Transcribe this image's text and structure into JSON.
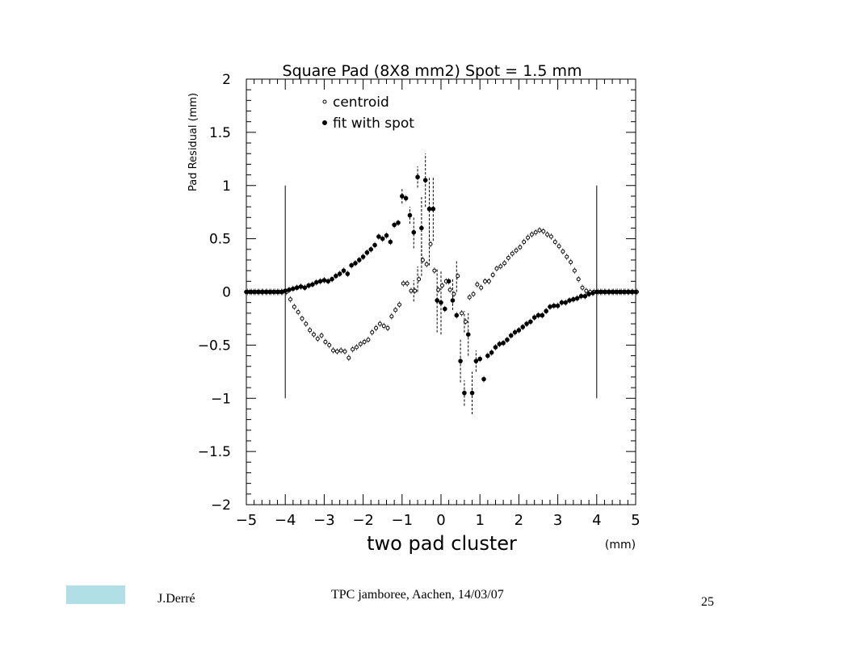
{
  "slide": {
    "author": "J.Derré",
    "event": "TPC jamboree, Aachen, 14/03/07",
    "page_number": "25",
    "accent_box_color": "#b0e0e6"
  },
  "chart_data": {
    "type": "scatter",
    "title": "Square Pad (8X8 mm2) Spot = 1.5 mm",
    "xlabel": "two pad cluster",
    "xunit": "(mm)",
    "ylabel": "Pad Residual (mm)",
    "xlim": [
      -5,
      5
    ],
    "ylim": [
      -2,
      2
    ],
    "x_ticks": [
      -5,
      -4,
      -3,
      -2,
      -1,
      0,
      1,
      2,
      3,
      4,
      5
    ],
    "x_tick_labels": [
      "−5",
      "−4",
      "−3",
      "−2",
      "−1",
      "0",
      "1",
      "2",
      "3",
      "4",
      "5"
    ],
    "y_ticks": [
      -2,
      -1.5,
      -1,
      -0.5,
      0,
      0.5,
      1,
      1.5,
      2
    ],
    "y_tick_labels": [
      "−2",
      "−1.5",
      "−1",
      "−0.5",
      "0",
      "0.5",
      "1",
      "1.5",
      "2"
    ],
    "grid": false,
    "legend_position": "top-left",
    "vertical_markers": [
      {
        "x": -4,
        "y_range": [
          -1,
          1
        ]
      },
      {
        "x": 4,
        "y_range": [
          -1,
          1
        ]
      }
    ],
    "series": [
      {
        "name": "centroid",
        "marker": "open-circle",
        "points": [
          [
            -5.0,
            0
          ],
          [
            -4.9,
            0
          ],
          [
            -4.8,
            0
          ],
          [
            -4.7,
            0
          ],
          [
            -4.6,
            0
          ],
          [
            -4.5,
            0
          ],
          [
            -4.4,
            0
          ],
          [
            -4.3,
            0
          ],
          [
            -4.2,
            0
          ],
          [
            -4.1,
            0
          ],
          [
            -4.0,
            0
          ],
          [
            -3.9,
            -0.07
          ],
          [
            -3.8,
            -0.14
          ],
          [
            -3.7,
            -0.19
          ],
          [
            -3.6,
            -0.25
          ],
          [
            -3.5,
            -0.3
          ],
          [
            -3.4,
            -0.36
          ],
          [
            -3.3,
            -0.4
          ],
          [
            -3.2,
            -0.44
          ],
          [
            -3.1,
            -0.41
          ],
          [
            -3.0,
            -0.47
          ],
          [
            -2.9,
            -0.5
          ],
          [
            -2.8,
            -0.55
          ],
          [
            -2.7,
            -0.56
          ],
          [
            -2.6,
            -0.55
          ],
          [
            -2.5,
            -0.56
          ],
          [
            -2.4,
            -0.62
          ],
          [
            -2.3,
            -0.54
          ],
          [
            -2.2,
            -0.52
          ],
          [
            -2.1,
            -0.49
          ],
          [
            -2.0,
            -0.47
          ],
          [
            -1.9,
            -0.45
          ],
          [
            -1.8,
            -0.38
          ],
          [
            -1.7,
            -0.34
          ],
          [
            -1.6,
            -0.3
          ],
          [
            -1.5,
            -0.32
          ],
          [
            -1.4,
            -0.34
          ],
          [
            -1.3,
            -0.23
          ],
          [
            -1.2,
            -0.17
          ],
          [
            -1.1,
            -0.12
          ],
          [
            -1.0,
            0.08
          ],
          [
            -0.9,
            0.08
          ],
          [
            -0.8,
            0.01
          ],
          [
            -0.7,
            0.01
          ],
          [
            -0.6,
            0.12
          ],
          [
            -0.5,
            0.3
          ],
          [
            -0.4,
            0.26
          ],
          [
            -0.3,
            0.45
          ],
          [
            -0.2,
            0.2
          ],
          [
            -0.1,
            0.02
          ],
          [
            0.0,
            0.06
          ],
          [
            0.1,
            0.1
          ],
          [
            0.2,
            0.02
          ],
          [
            0.3,
            -0.02
          ],
          [
            0.4,
            0.15
          ],
          [
            0.5,
            -0.2
          ],
          [
            0.6,
            -0.28
          ],
          [
            0.7,
            -0.05
          ],
          [
            0.8,
            -0.02
          ],
          [
            0.9,
            0.07
          ],
          [
            1.0,
            0.04
          ],
          [
            1.1,
            0.1
          ],
          [
            1.2,
            0.1
          ],
          [
            1.3,
            0.16
          ],
          [
            1.4,
            0.22
          ],
          [
            1.5,
            0.24
          ],
          [
            1.6,
            0.27
          ],
          [
            1.7,
            0.32
          ],
          [
            1.8,
            0.36
          ],
          [
            1.9,
            0.39
          ],
          [
            2.0,
            0.42
          ],
          [
            2.1,
            0.47
          ],
          [
            2.2,
            0.51
          ],
          [
            2.3,
            0.54
          ],
          [
            2.4,
            0.56
          ],
          [
            2.5,
            0.58
          ],
          [
            2.6,
            0.57
          ],
          [
            2.7,
            0.54
          ],
          [
            2.8,
            0.52
          ],
          [
            2.9,
            0.47
          ],
          [
            3.0,
            0.43
          ],
          [
            3.1,
            0.38
          ],
          [
            3.2,
            0.33
          ],
          [
            3.3,
            0.28
          ],
          [
            3.4,
            0.2
          ],
          [
            3.5,
            0.12
          ],
          [
            3.6,
            0.04
          ],
          [
            3.7,
            0.01
          ],
          [
            3.8,
            0
          ],
          [
            3.9,
            0
          ],
          [
            4.0,
            0
          ],
          [
            4.1,
            0
          ],
          [
            4.2,
            0
          ],
          [
            4.3,
            0
          ],
          [
            4.4,
            0
          ],
          [
            4.5,
            0
          ],
          [
            4.6,
            0
          ],
          [
            4.7,
            0
          ],
          [
            4.8,
            0
          ],
          [
            4.9,
            0
          ],
          [
            5.0,
            0
          ]
        ]
      },
      {
        "name": "fit with spot",
        "marker": "filled-circle",
        "points": [
          [
            -5.0,
            0
          ],
          [
            -4.9,
            0
          ],
          [
            -4.8,
            0
          ],
          [
            -4.7,
            0
          ],
          [
            -4.6,
            0
          ],
          [
            -4.5,
            0
          ],
          [
            -4.4,
            0
          ],
          [
            -4.3,
            0
          ],
          [
            -4.2,
            0
          ],
          [
            -4.1,
            0
          ],
          [
            -4.0,
            0.01
          ],
          [
            -3.9,
            0.02
          ],
          [
            -3.8,
            0.03
          ],
          [
            -3.7,
            0.04
          ],
          [
            -3.6,
            0.05
          ],
          [
            -3.5,
            0.04
          ],
          [
            -3.4,
            0.06
          ],
          [
            -3.3,
            0.07
          ],
          [
            -3.2,
            0.09
          ],
          [
            -3.1,
            0.1
          ],
          [
            -3.0,
            0.11
          ],
          [
            -2.9,
            0.1
          ],
          [
            -2.8,
            0.12
          ],
          [
            -2.7,
            0.15
          ],
          [
            -2.6,
            0.17
          ],
          [
            -2.5,
            0.2
          ],
          [
            -2.4,
            0.17
          ],
          [
            -2.3,
            0.25
          ],
          [
            -2.2,
            0.27
          ],
          [
            -2.1,
            0.3
          ],
          [
            -2.0,
            0.33
          ],
          [
            -1.9,
            0.37
          ],
          [
            -1.8,
            0.4
          ],
          [
            -1.7,
            0.44
          ],
          [
            -1.6,
            0.52
          ],
          [
            -1.5,
            0.5
          ],
          [
            -1.4,
            0.53
          ],
          [
            -1.3,
            0.47
          ],
          [
            -1.2,
            0.63
          ],
          [
            -1.1,
            0.65
          ],
          [
            -1.0,
            0.9
          ],
          [
            -0.9,
            0.88
          ],
          [
            -0.8,
            0.72
          ],
          [
            -0.7,
            0.56
          ],
          [
            -0.6,
            1.08
          ],
          [
            -0.5,
            0.6
          ],
          [
            -0.4,
            1.05
          ],
          [
            -0.3,
            0.78
          ],
          [
            -0.2,
            0.78
          ],
          [
            -0.1,
            -0.08
          ],
          [
            0.0,
            -0.1
          ],
          [
            0.1,
            -0.16
          ],
          [
            0.2,
            0.1
          ],
          [
            0.3,
            -0.08
          ],
          [
            0.4,
            -0.22
          ],
          [
            0.5,
            -0.65
          ],
          [
            0.6,
            -0.95
          ],
          [
            0.7,
            -0.4
          ],
          [
            0.8,
            -0.95
          ],
          [
            0.9,
            -0.65
          ],
          [
            1.0,
            -0.63
          ],
          [
            1.1,
            -0.82
          ],
          [
            1.2,
            -0.6
          ],
          [
            1.3,
            -0.57
          ],
          [
            1.4,
            -0.52
          ],
          [
            1.5,
            -0.49
          ],
          [
            1.6,
            -0.48
          ],
          [
            1.7,
            -0.45
          ],
          [
            1.8,
            -0.41
          ],
          [
            1.9,
            -0.38
          ],
          [
            2.0,
            -0.36
          ],
          [
            2.1,
            -0.33
          ],
          [
            2.2,
            -0.3
          ],
          [
            2.3,
            -0.28
          ],
          [
            2.4,
            -0.24
          ],
          [
            2.5,
            -0.22
          ],
          [
            2.6,
            -0.22
          ],
          [
            2.7,
            -0.18
          ],
          [
            2.8,
            -0.14
          ],
          [
            2.9,
            -0.13
          ],
          [
            3.0,
            -0.13
          ],
          [
            3.1,
            -0.1
          ],
          [
            3.2,
            -0.1
          ],
          [
            3.3,
            -0.08
          ],
          [
            3.4,
            -0.07
          ],
          [
            3.5,
            -0.06
          ],
          [
            3.6,
            -0.04
          ],
          [
            3.7,
            -0.04
          ],
          [
            3.8,
            -0.02
          ],
          [
            3.9,
            -0.01
          ],
          [
            4.0,
            0
          ],
          [
            4.1,
            0
          ],
          [
            4.2,
            0
          ],
          [
            4.3,
            0
          ],
          [
            4.4,
            0
          ],
          [
            4.5,
            0
          ],
          [
            4.6,
            0
          ],
          [
            4.7,
            0
          ],
          [
            4.8,
            0
          ],
          [
            4.9,
            0
          ],
          [
            5.0,
            0
          ]
        ]
      }
    ],
    "error_bars": [
      {
        "x": -1.0,
        "y": 0.9,
        "yerr": 0.07
      },
      {
        "x": -0.8,
        "y": 0.72,
        "yerr": 0.08
      },
      {
        "x": -0.7,
        "y": 0.56,
        "yerr": 0.15
      },
      {
        "x": -0.6,
        "y": 1.08,
        "yerr": 0.1
      },
      {
        "x": -0.5,
        "y": 0.6,
        "yerr": 0.3
      },
      {
        "x": -0.4,
        "y": 1.05,
        "yerr": 0.25
      },
      {
        "x": -0.3,
        "y": 0.78,
        "yerr": 0.3
      },
      {
        "x": -0.2,
        "y": 0.78,
        "yerr": 0.3
      },
      {
        "x": -0.1,
        "y": -0.08,
        "yerr": 0.3
      },
      {
        "x": 0.0,
        "y": -0.1,
        "yerr": 0.3
      },
      {
        "x": 0.5,
        "y": -0.65,
        "yerr": 0.2
      },
      {
        "x": 0.6,
        "y": -0.95,
        "yerr": 0.12
      },
      {
        "x": 0.7,
        "y": -0.4,
        "yerr": 0.2
      },
      {
        "x": 0.8,
        "y": -0.95,
        "yerr": 0.2
      },
      {
        "x": 0.9,
        "y": -0.65,
        "yerr": 0.1
      },
      {
        "x": -0.7,
        "y": 0.01,
        "yerr": 0.1
      },
      {
        "x": -0.6,
        "y": 0.12,
        "yerr": 0.12
      },
      {
        "x": -0.5,
        "y": 0.3,
        "yerr": 0.15
      },
      {
        "x": -0.3,
        "y": 0.45,
        "yerr": 0.2
      },
      {
        "x": 0.3,
        "y": -0.02,
        "yerr": 0.15
      },
      {
        "x": 0.4,
        "y": 0.15,
        "yerr": 0.15
      },
      {
        "x": 0.6,
        "y": -0.28,
        "yerr": 0.1
      }
    ]
  }
}
